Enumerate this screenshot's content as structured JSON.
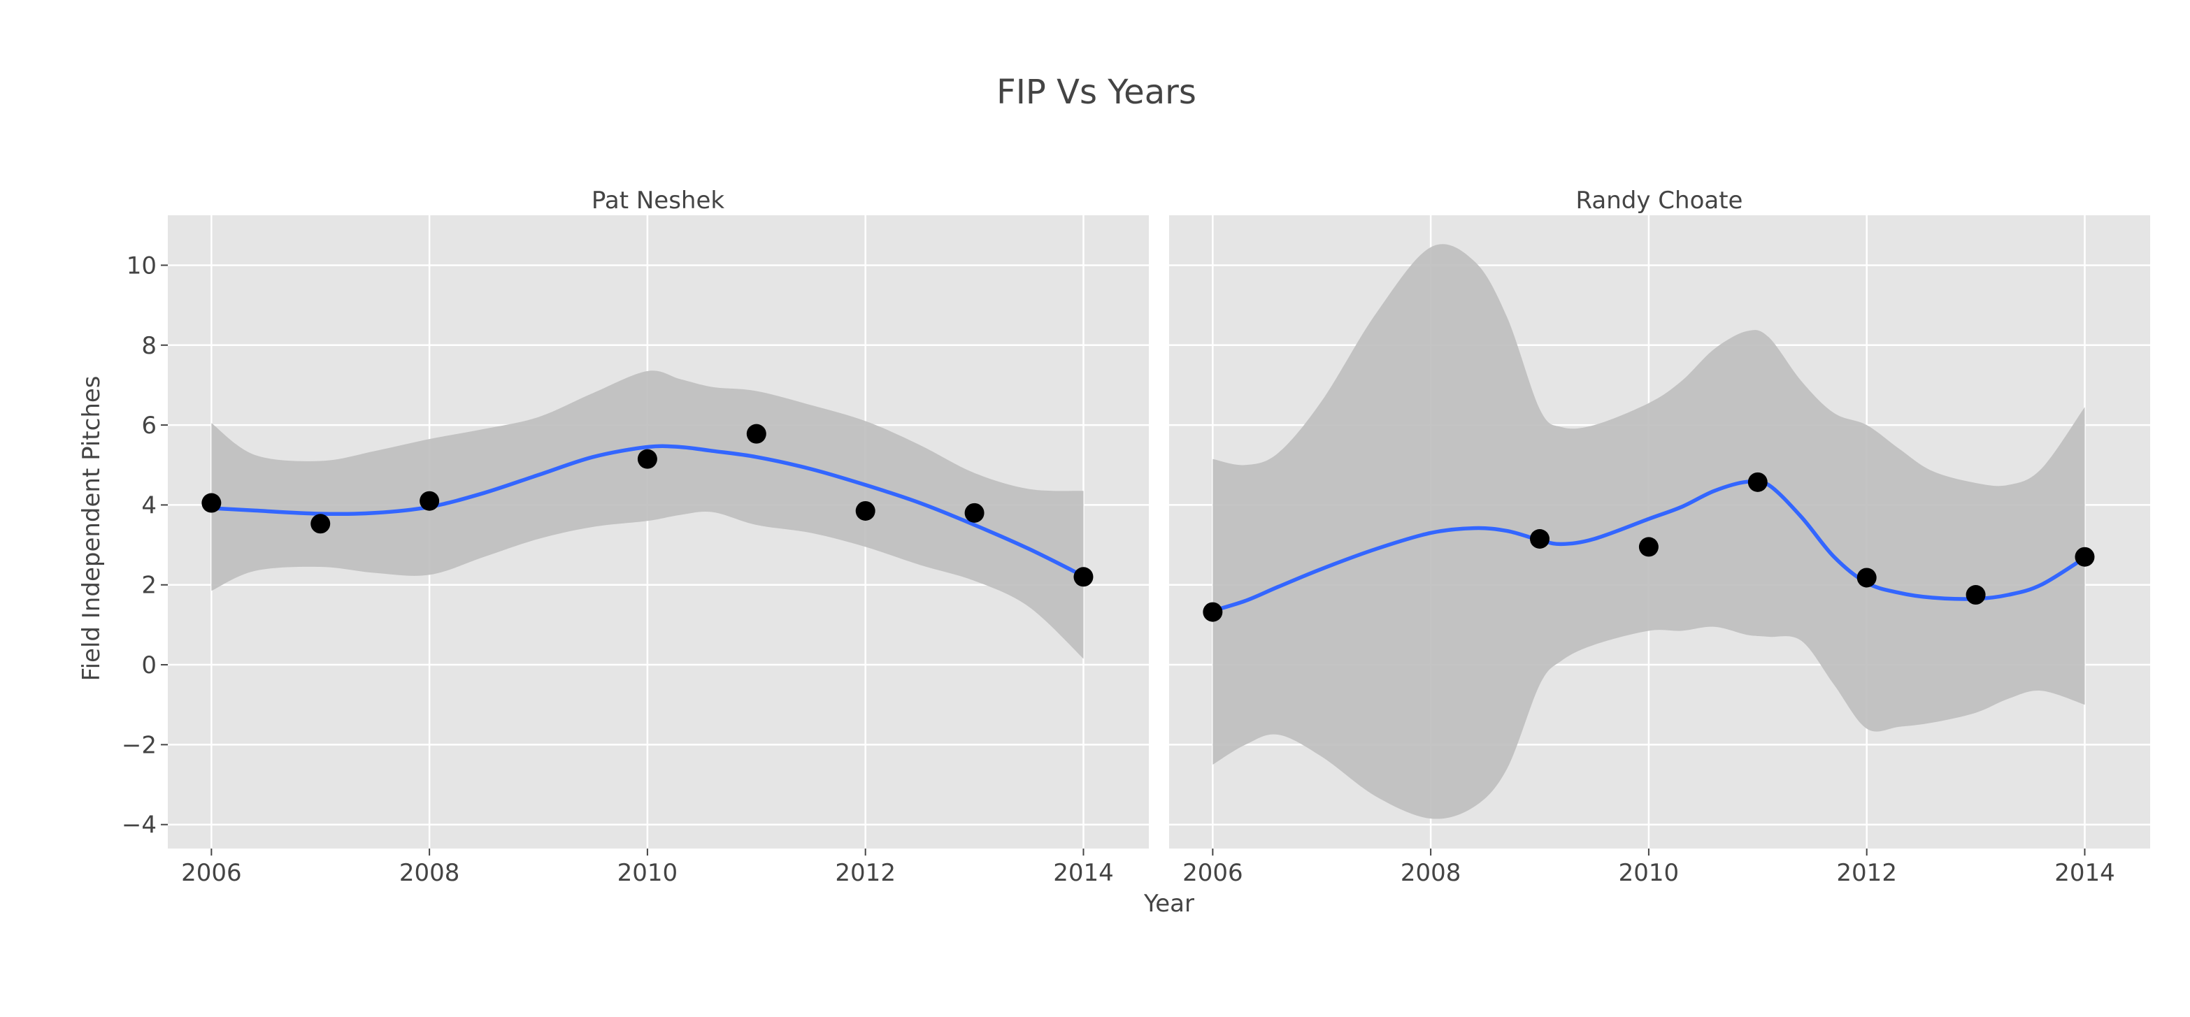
{
  "chart_data": {
    "type": "scatter",
    "title": "FIP Vs Years",
    "xlabel": "Year",
    "ylabel": "Field Independent Pitches",
    "xlim": [
      2005.6,
      2014.6
    ],
    "ylim": [
      -4.6,
      11.25
    ],
    "xticks": [
      2006,
      2008,
      2010,
      2012,
      2014
    ],
    "yticks": [
      -4,
      -2,
      0,
      2,
      4,
      6,
      8,
      10
    ],
    "ytick_labels": [
      "−4",
      "−2",
      "0",
      "2",
      "4",
      "6",
      "8",
      "10"
    ],
    "grid": true,
    "colors": {
      "panel": "#e5e5e5",
      "grid": "#ffffff",
      "band": "#bfbfbf",
      "line": "#3366ff",
      "point": "#000000"
    },
    "panels": [
      {
        "name": "Pat Neshek",
        "points": {
          "x": [
            2006,
            2007,
            2008,
            2010,
            2011,
            2012,
            2013,
            2014
          ],
          "y": [
            4.05,
            3.53,
            4.1,
            5.15,
            5.78,
            3.85,
            3.8,
            2.2
          ]
        },
        "smooth": {
          "x": [
            2006,
            2006.4,
            2007,
            2007.5,
            2008,
            2008.5,
            2009,
            2009.5,
            2010,
            2010.3,
            2010.6,
            2011,
            2011.5,
            2012,
            2012.5,
            2013,
            2013.5,
            2014
          ],
          "y": [
            3.92,
            3.86,
            3.78,
            3.8,
            3.95,
            4.3,
            4.75,
            5.2,
            5.45,
            5.45,
            5.35,
            5.2,
            4.9,
            4.5,
            4.05,
            3.5,
            2.9,
            2.22
          ],
          "lower": [
            1.85,
            2.35,
            2.45,
            2.3,
            2.25,
            2.7,
            3.15,
            3.45,
            3.6,
            3.75,
            3.82,
            3.5,
            3.3,
            2.95,
            2.5,
            2.1,
            1.45,
            0.15
          ],
          "upper": [
            6.05,
            5.25,
            5.1,
            5.35,
            5.65,
            5.9,
            6.2,
            6.8,
            7.35,
            7.15,
            6.95,
            6.85,
            6.5,
            6.1,
            5.5,
            4.8,
            4.4,
            4.35
          ]
        }
      },
      {
        "name": "Randy Choate",
        "points": {
          "x": [
            2006,
            2009,
            2010,
            2011,
            2012,
            2013,
            2014
          ],
          "y": [
            1.32,
            3.15,
            2.95,
            4.57,
            2.18,
            1.75,
            2.7
          ]
        },
        "smooth": {
          "x": [
            2006,
            2006.3,
            2006.6,
            2007,
            2007.5,
            2008,
            2008.4,
            2008.7,
            2009,
            2009.2,
            2009.5,
            2010,
            2010.3,
            2010.6,
            2010.9,
            2011.1,
            2011.4,
            2011.7,
            2012,
            2012.3,
            2012.6,
            2013,
            2013.3,
            2013.6,
            2014
          ],
          "y": [
            1.35,
            1.6,
            1.95,
            2.4,
            2.9,
            3.3,
            3.42,
            3.35,
            3.12,
            3.02,
            3.15,
            3.65,
            3.95,
            4.35,
            4.58,
            4.5,
            3.7,
            2.7,
            2.05,
            1.8,
            1.68,
            1.65,
            1.75,
            2.0,
            2.68
          ],
          "lower": [
            -2.5,
            -2.0,
            -1.75,
            -2.3,
            -3.3,
            -3.85,
            -3.55,
            -2.6,
            -0.5,
            0.1,
            0.5,
            0.85,
            0.85,
            0.95,
            0.75,
            0.7,
            0.6,
            -0.5,
            -1.6,
            -1.55,
            -1.45,
            -1.2,
            -0.85,
            -0.65,
            -1.0
          ],
          "upper": [
            5.15,
            5.0,
            5.3,
            6.6,
            8.8,
            10.45,
            10.1,
            8.7,
            6.4,
            5.95,
            6.0,
            6.55,
            7.1,
            7.9,
            8.35,
            8.2,
            7.1,
            6.3,
            6.0,
            5.4,
            4.85,
            4.55,
            4.5,
            4.9,
            6.45
          ]
        }
      }
    ]
  }
}
